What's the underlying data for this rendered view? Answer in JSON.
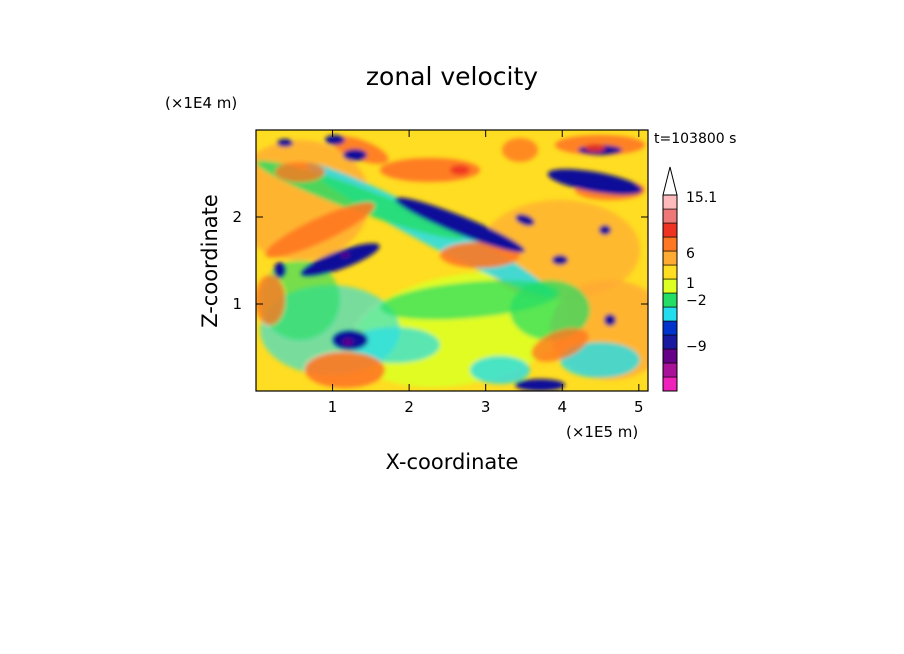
{
  "chart_data": {
    "type": "heatmap",
    "title": "zonal velocity",
    "xlabel": "X-coordinate",
    "ylabel": "Z-coordinate",
    "x_unit": "(×1E5 m)",
    "y_unit": "(×1E4 m)",
    "time_label": "t=103800 s",
    "xlim": [
      0,
      5.12
    ],
    "ylim": [
      0,
      3.0
    ],
    "x_ticks": [
      1,
      2,
      3,
      4,
      5
    ],
    "x_tick_labels": [
      "1",
      "2",
      "3",
      "4",
      "5"
    ],
    "y_ticks": [
      1,
      2
    ],
    "y_tick_labels": [
      "1",
      "2"
    ],
    "colorbar": {
      "colors": [
        "#ee22bb",
        "#aa1199",
        "#660088",
        "#1a1aa0",
        "#0033cc",
        "#22ddee",
        "#22dd66",
        "#ddff22",
        "#ffdd22",
        "#ffaa33",
        "#ff7722",
        "#ee3322",
        "#ee7777",
        "#ffbbbb"
      ],
      "labels": [
        "15.1",
        "6",
        "1",
        "−2",
        "−9"
      ],
      "label_values": [
        15.1,
        6,
        1,
        -2,
        -9
      ],
      "extend_max": true
    }
  }
}
